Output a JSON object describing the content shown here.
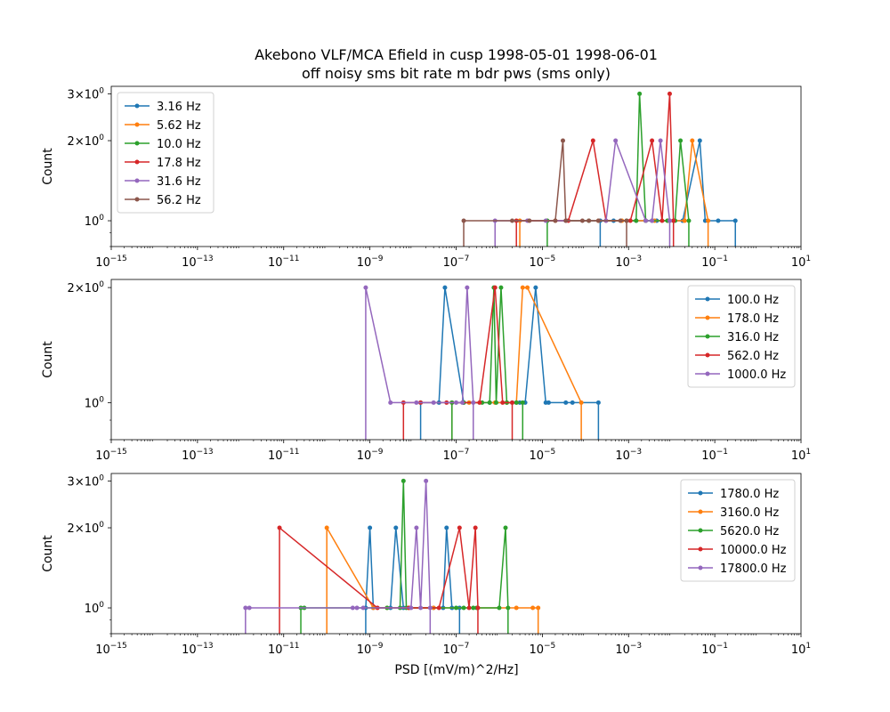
{
  "figure": {
    "title_line1": "Akebono VLF/MCA Efield in cusp 1998-05-01 1998-06-01",
    "title_line2": "off noisy sms bit rate m bdr pws (sms only)",
    "xlabel": "PSD [(mV/m)^2/Hz]",
    "ylabel": "Count"
  },
  "chart_data": [
    {
      "type": "line",
      "xscale": "log",
      "yscale": "log",
      "xlim": [
        1e-15,
        10
      ],
      "ylim": [
        0.8,
        3.2
      ],
      "xlabel": "",
      "ylabel": "Count",
      "xticks": [
        1e-15,
        1e-13,
        1e-11,
        1e-09,
        1e-07,
        1e-05,
        0.001,
        0.1,
        10
      ],
      "yticks": [
        1,
        2,
        3
      ],
      "legend": "upper left",
      "series": [
        {
          "name": "3.16 Hz",
          "color": "#1f77b4",
          "points": [
            [
              0.00022,
              1
            ],
            [
              0.00045,
              1
            ],
            [
              0.0015,
              1
            ],
            [
              0.0025,
              1
            ],
            [
              0.0035,
              1
            ],
            [
              0.0045,
              1
            ],
            [
              0.009,
              1
            ],
            [
              0.018,
              1
            ],
            [
              0.045,
              2
            ],
            [
              0.06,
              1
            ],
            [
              0.12,
              1
            ],
            [
              0.3,
              1
            ]
          ]
        },
        {
          "name": "5.62 Hz",
          "color": "#ff7f0e",
          "points": [
            [
              3e-06,
              1
            ],
            [
              2e-05,
              1
            ],
            [
              0.0002,
              1
            ],
            [
              0.0007,
              1
            ],
            [
              0.0025,
              1
            ],
            [
              0.004,
              1
            ],
            [
              0.008,
              1
            ],
            [
              0.02,
              1
            ],
            [
              0.03,
              2
            ],
            [
              0.07,
              1
            ]
          ]
        },
        {
          "name": "10.0 Hz",
          "color": "#2ca02c",
          "points": [
            [
              1.3e-05,
              1
            ],
            [
              0.00012,
              1
            ],
            [
              0.0009,
              1
            ],
            [
              0.0015,
              1
            ],
            [
              0.0018,
              3
            ],
            [
              0.0025,
              1
            ],
            [
              0.008,
              1
            ],
            [
              0.012,
              1
            ],
            [
              0.016,
              2
            ],
            [
              0.025,
              1
            ]
          ]
        },
        {
          "name": "17.8 Hz",
          "color": "#d62728",
          "points": [
            [
              2.5e-06,
              1
            ],
            [
              4e-05,
              1
            ],
            [
              0.00015,
              2
            ],
            [
              0.0003,
              1
            ],
            [
              0.0011,
              1
            ],
            [
              0.0035,
              2
            ],
            [
              0.006,
              1
            ],
            [
              0.009,
              3
            ],
            [
              0.011,
              1
            ]
          ]
        },
        {
          "name": "31.6 Hz",
          "color": "#9467bd",
          "points": [
            [
              8e-07,
              1
            ],
            [
              4.5e-06,
              1
            ],
            [
              1.2e-05,
              1
            ],
            [
              3.5e-05,
              1
            ],
            [
              0.0003,
              1
            ],
            [
              0.0005,
              2
            ],
            [
              0.0025,
              1
            ],
            [
              0.0035,
              1
            ],
            [
              0.0055,
              2
            ],
            [
              0.009,
              1
            ]
          ]
        },
        {
          "name": "56.2 Hz",
          "color": "#8c564b",
          "points": [
            [
              1.5e-07,
              1
            ],
            [
              2e-06,
              1
            ],
            [
              5e-06,
              1
            ],
            [
              2e-05,
              1
            ],
            [
              3e-05,
              2
            ],
            [
              3.5e-05,
              1
            ],
            [
              8.5e-05,
              1
            ],
            [
              0.00012,
              1
            ],
            [
              0.0002,
              1
            ],
            [
              0.00065,
              1
            ],
            [
              0.0009,
              1
            ]
          ]
        }
      ]
    },
    {
      "type": "line",
      "xscale": "log",
      "yscale": "log",
      "xlim": [
        1e-15,
        10
      ],
      "ylim": [
        0.8,
        2.1
      ],
      "xlabel": "",
      "ylabel": "Count",
      "xticks": [
        1e-15,
        1e-13,
        1e-11,
        1e-09,
        1e-07,
        1e-05,
        0.001,
        0.1,
        10
      ],
      "yticks": [
        1,
        2
      ],
      "legend": "upper right",
      "series": [
        {
          "name": "100.0 Hz",
          "color": "#1f77b4",
          "points": [
            [
              1.5e-08,
              1
            ],
            [
              4e-08,
              1
            ],
            [
              5.5e-08,
              2
            ],
            [
              1.5e-07,
              1
            ],
            [
              6e-07,
              1
            ],
            [
              2e-06,
              1
            ],
            [
              3e-06,
              1
            ],
            [
              4e-06,
              1
            ],
            [
              7e-06,
              2
            ],
            [
              1.2e-05,
              1
            ],
            [
              1.4e-05,
              1
            ],
            [
              3.5e-05,
              1
            ],
            [
              5e-05,
              1
            ],
            [
              0.0002,
              1
            ]
          ]
        },
        {
          "name": "178.0 Hz",
          "color": "#ff7f0e",
          "points": [
            [
              8e-08,
              1
            ],
            [
              2e-07,
              1
            ],
            [
              8e-07,
              1
            ],
            [
              1.5e-06,
              1
            ],
            [
              2.5e-06,
              1
            ],
            [
              3.5e-06,
              2
            ],
            [
              4.5e-06,
              2
            ],
            [
              8e-05,
              1
            ]
          ]
        },
        {
          "name": "316.0 Hz",
          "color": "#2ca02c",
          "points": [
            [
              8e-08,
              1
            ],
            [
              1.5e-07,
              1
            ],
            [
              4e-07,
              1
            ],
            [
              6e-07,
              1
            ],
            [
              7.5e-07,
              2
            ],
            [
              8.5e-07,
              1
            ],
            [
              1.1e-06,
              2
            ],
            [
              1.5e-06,
              1
            ],
            [
              2.5e-06,
              1
            ],
            [
              3.5e-06,
              1
            ]
          ]
        },
        {
          "name": "562.0 Hz",
          "color": "#d62728",
          "points": [
            [
              6e-09,
              1
            ],
            [
              1.5e-08,
              1
            ],
            [
              6e-08,
              1
            ],
            [
              3.5e-07,
              1
            ],
            [
              8e-07,
              2
            ],
            [
              1.2e-06,
              1
            ],
            [
              2e-06,
              1
            ]
          ]
        },
        {
          "name": "1000.0 Hz",
          "color": "#9467bd",
          "points": [
            [
              8e-10,
              2
            ],
            [
              3e-09,
              1
            ],
            [
              1.2e-08,
              1
            ],
            [
              3e-08,
              1
            ],
            [
              1e-07,
              1
            ],
            [
              1.4e-07,
              1
            ],
            [
              1.8e-07,
              2
            ],
            [
              2.5e-07,
              1
            ]
          ]
        }
      ]
    },
    {
      "type": "line",
      "xscale": "log",
      "yscale": "log",
      "xlim": [
        1e-15,
        10
      ],
      "ylim": [
        0.8,
        3.2
      ],
      "xlabel": "PSD [(mV/m)^2/Hz]",
      "ylabel": "Count",
      "xticks": [
        1e-15,
        1e-13,
        1e-11,
        1e-09,
        1e-07,
        1e-05,
        0.001,
        0.1,
        10
      ],
      "yticks": [
        1,
        2,
        3
      ],
      "legend": "upper right",
      "series": [
        {
          "name": "1780.0 Hz",
          "color": "#1f77b4",
          "points": [
            [
              8e-10,
              1
            ],
            [
              1e-09,
              2
            ],
            [
              1.2e-09,
              1
            ],
            [
              3e-09,
              1
            ],
            [
              4e-09,
              2
            ],
            [
              6e-09,
              1
            ],
            [
              3e-08,
              1
            ],
            [
              5e-08,
              1
            ],
            [
              6e-08,
              2
            ],
            [
              8e-08,
              1
            ],
            [
              1.2e-07,
              1
            ]
          ]
        },
        {
          "name": "3160.0 Hz",
          "color": "#ff7f0e",
          "points": [
            [
              1e-10,
              2
            ],
            [
              1.2e-09,
              1
            ],
            [
              2.5e-09,
              1
            ],
            [
              8e-09,
              1
            ],
            [
              3e-08,
              1
            ],
            [
              2.5e-06,
              1
            ],
            [
              6e-06,
              1
            ],
            [
              8e-06,
              1
            ]
          ]
        },
        {
          "name": "5620.0 Hz",
          "color": "#2ca02c",
          "points": [
            [
              2.5e-11,
              1
            ],
            [
              3e-11,
              1
            ],
            [
              2.5e-09,
              1
            ],
            [
              5e-09,
              1
            ],
            [
              6e-09,
              3
            ],
            [
              7e-09,
              1
            ],
            [
              1e-07,
              1
            ],
            [
              1.5e-07,
              1
            ],
            [
              2.5e-07,
              1
            ],
            [
              3e-07,
              1
            ],
            [
              1e-06,
              1
            ],
            [
              1.4e-06,
              2
            ],
            [
              1.6e-06,
              1
            ]
          ]
        },
        {
          "name": "10000.0 Hz",
          "color": "#d62728",
          "points": [
            [
              8e-12,
              2
            ],
            [
              1.5e-09,
              1
            ],
            [
              8e-09,
              1
            ],
            [
              4e-08,
              1
            ],
            [
              1.2e-07,
              2
            ],
            [
              2e-07,
              1
            ],
            [
              2.8e-07,
              2
            ],
            [
              3.2e-07,
              1
            ]
          ]
        },
        {
          "name": "17800.0 Hz",
          "color": "#9467bd",
          "points": [
            [
              1.3e-12,
              1
            ],
            [
              1.6e-12,
              1
            ],
            [
              4e-10,
              1
            ],
            [
              5e-10,
              1
            ],
            [
              7e-10,
              1
            ],
            [
              9e-09,
              1
            ],
            [
              1.2e-08,
              2
            ],
            [
              1.5e-08,
              1
            ],
            [
              2e-08,
              3
            ],
            [
              2.5e-08,
              1
            ]
          ]
        }
      ]
    }
  ]
}
